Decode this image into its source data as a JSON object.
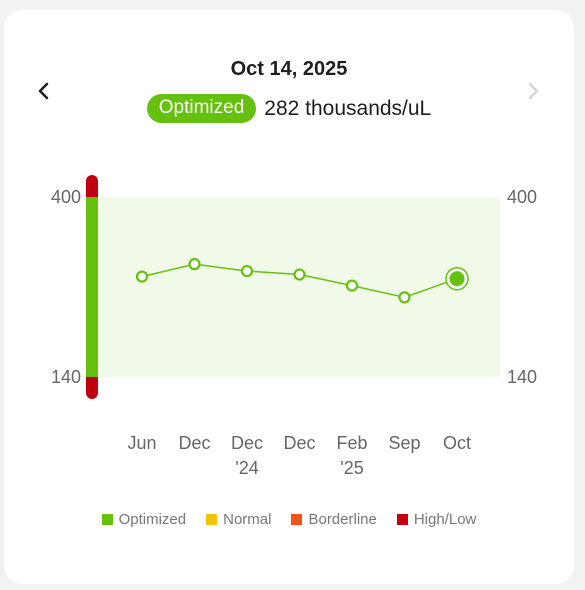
{
  "header": {
    "date": "Oct 14, 2025",
    "status_label": "Optimized",
    "reading": "282 thousands/uL"
  },
  "nav": {
    "prev_icon": "chevron-left-icon",
    "next_icon": "chevron-right-icon"
  },
  "colors": {
    "optimized": "#66c10e",
    "normal": "#f5c20a",
    "borderline": "#f2541b",
    "high_low": "#c0000f",
    "band": "#f1fae8"
  },
  "chart_data": {
    "type": "line",
    "ylim": [
      140,
      400
    ],
    "y_ticks": [
      "400",
      "140"
    ],
    "categories": [
      [
        "Jun"
      ],
      [
        "Dec"
      ],
      [
        "Dec",
        "'24"
      ],
      [
        "Dec"
      ],
      [
        "Feb",
        "'25"
      ],
      [
        "Sep"
      ],
      [
        "Oct"
      ]
    ],
    "values": [
      285,
      303,
      293,
      288,
      272,
      255,
      282
    ],
    "optimized_range": [
      140,
      400
    ],
    "highlight_index": 6
  },
  "legend": [
    {
      "label": "Optimized",
      "color": "#66c10e"
    },
    {
      "label": "Normal",
      "color": "#f5c20a"
    },
    {
      "label": "Borderline",
      "color": "#f2541b"
    },
    {
      "label": "High/Low",
      "color": "#c0000f"
    }
  ]
}
